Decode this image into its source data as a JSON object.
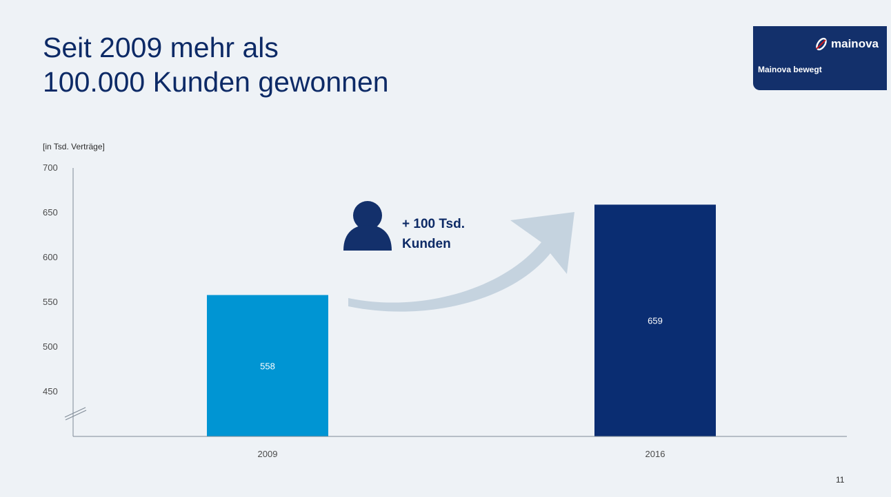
{
  "slide": {
    "title_line1": "Seit 2009 mehr als",
    "title_line2": "100.000 Kunden gewonnen",
    "unit_label": "[in Tsd. Verträge]",
    "page_number": "11"
  },
  "logo": {
    "wordmark": "mainova",
    "tagline": "Mainova bewegt",
    "background_color": "#13306b"
  },
  "callout": {
    "line1": "+ 100 Tsd.",
    "line2": "Kunden",
    "icon": "person-icon",
    "arrow_color": "#c5d3df"
  },
  "chart_data": {
    "type": "bar",
    "title": "",
    "xlabel": "",
    "ylabel": "[in Tsd. Verträge]",
    "categories": [
      "2009",
      "2016"
    ],
    "values": [
      558,
      659
    ],
    "value_labels": [
      "558",
      "659"
    ],
    "bar_colors": [
      "#0095d3",
      "#0a2d72"
    ],
    "ylim": [
      400,
      700
    ],
    "yticks": [
      450,
      500,
      550,
      600,
      650,
      700
    ],
    "axis_break": true,
    "grid": false
  }
}
